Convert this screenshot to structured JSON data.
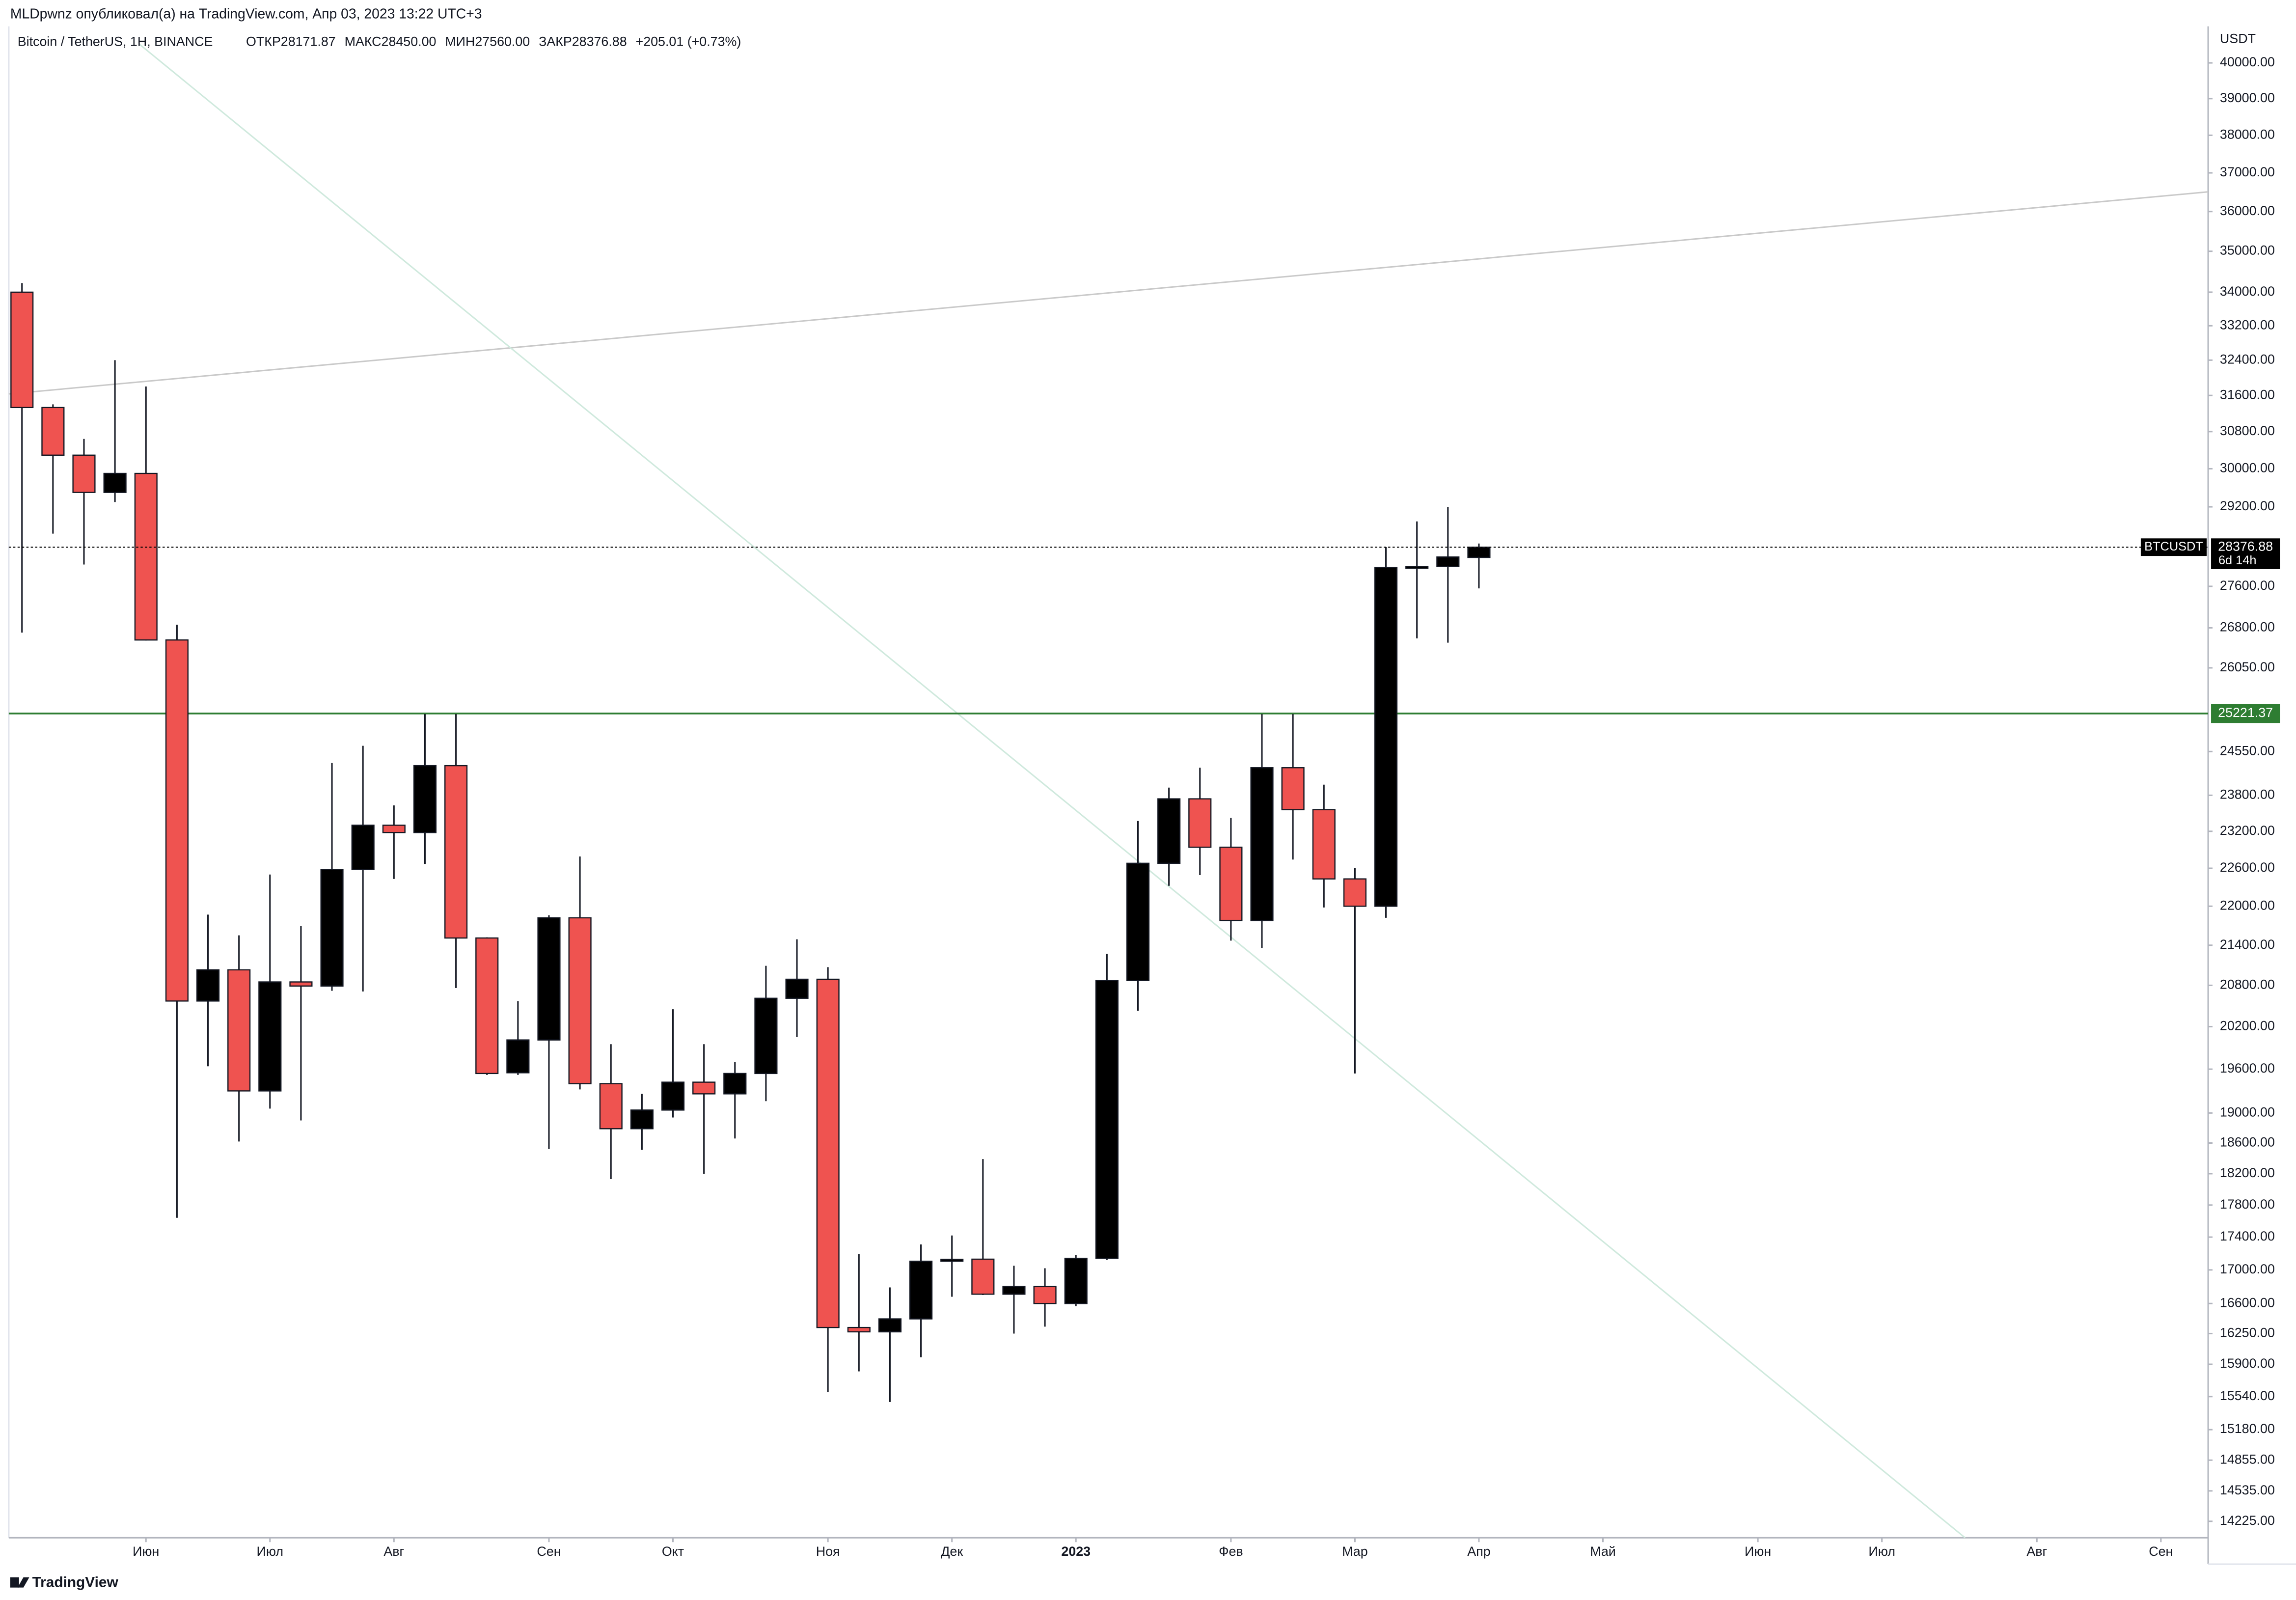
{
  "published": "MLDpwnz опубликовал(а) на TradingView.com, Апр 03, 2023 13:22 UTC+3",
  "footer": "TradingView",
  "chart_data": {
    "type": "candlestick",
    "title": "Bitcoin / TetherUS, 1H, BINANCE",
    "ohlc_legend": [
      "ОТКР28171.87",
      "МАКС28450.00",
      "МИН27560.00",
      "ЗАКР28376.88",
      "+205.01 (+0.73%)"
    ],
    "y_unit": "USDT",
    "log_scale": true,
    "up_color": "#000000",
    "down_color": "#ef5350",
    "categories": [
      null,
      null,
      null,
      null,
      "Июн",
      null,
      null,
      null,
      "Июл",
      null,
      null,
      null,
      "Авг",
      null,
      null,
      null,
      null,
      "Сен",
      null,
      null,
      null,
      "Окт",
      null,
      null,
      null,
      null,
      "Ноя",
      null,
      null,
      null,
      "Дек",
      null,
      null,
      null,
      "2023",
      null,
      null,
      null,
      null,
      "Фев",
      null,
      null,
      null,
      "Мар",
      null,
      null,
      null,
      "Апр",
      null,
      null,
      null,
      "Май",
      null,
      null,
      null,
      null,
      "Июн",
      null,
      null,
      null,
      "Июл",
      null,
      null,
      null,
      null,
      "Авг",
      null,
      null,
      null,
      "Сен",
      null
    ],
    "open": [
      34000,
      31330,
      30290,
      29500,
      29900,
      26570,
      20570,
      21030,
      19300,
      20850,
      20790,
      22580,
      23300,
      23180,
      24305,
      21510,
      19550,
      20010,
      21820,
      19400,
      18790,
      19040,
      19420,
      19260,
      19540,
      20610,
      20890,
      16320,
      16270,
      16420,
      17105,
      17130,
      16710,
      16800,
      16600,
      17140,
      20870,
      22680,
      23740,
      22940,
      21780,
      24270,
      23560,
      22430,
      22000,
      27970,
      27990,
      28171.87,
      null,
      null,
      null,
      null,
      null,
      null,
      null,
      null,
      null,
      null,
      null,
      null,
      null,
      null,
      null,
      null,
      null,
      null,
      null,
      null,
      null,
      null,
      null
    ],
    "high": [
      34220,
      31400,
      30640,
      32400,
      31800,
      26860,
      21870,
      21550,
      22500,
      21690,
      24350,
      24650,
      23630,
      25210,
      25210,
      21520,
      20570,
      21860,
      22790,
      19950,
      19260,
      20450,
      19950,
      19700,
      21090,
      21490,
      21070,
      17190,
      16790,
      17310,
      17420,
      18390,
      17050,
      17020,
      17180,
      21270,
      23370,
      23930,
      24270,
      23420,
      25210,
      25210,
      23980,
      22600,
      28380,
      28900,
      29200,
      28450,
      null,
      null,
      null,
      null,
      null,
      null,
      null,
      null,
      null,
      null,
      null,
      null,
      null,
      null,
      null,
      null,
      null,
      null,
      null,
      null,
      null,
      null,
      null
    ],
    "low": [
      26710,
      28650,
      28030,
      29300,
      26560,
      17640,
      19640,
      18620,
      19060,
      18900,
      20720,
      20710,
      22430,
      22670,
      20760,
      19520,
      19520,
      18520,
      19320,
      18130,
      18510,
      18940,
      18200,
      18660,
      19160,
      20050,
      15590,
      15820,
      15480,
      15980,
      16680,
      16700,
      16250,
      16330,
      16570,
      17120,
      20430,
      22320,
      22490,
      21470,
      21360,
      22740,
      21980,
      19540,
      21820,
      26600,
      26520,
      27560,
      null,
      null,
      null,
      null,
      null,
      null,
      null,
      null,
      null,
      null,
      null,
      null,
      null,
      null,
      null,
      null,
      null,
      null,
      null,
      null,
      null,
      null,
      null
    ],
    "close": [
      31330,
      30290,
      29500,
      29900,
      26570,
      20570,
      21030,
      19300,
      20850,
      20790,
      22580,
      23300,
      23180,
      24305,
      21510,
      19540,
      20010,
      21820,
      19400,
      18790,
      19040,
      19420,
      19260,
      19540,
      20610,
      20890,
      16320,
      16270,
      16420,
      17105,
      17128,
      16710,
      16800,
      16600,
      17140,
      20870,
      22680,
      23740,
      22940,
      21780,
      24270,
      23560,
      22430,
      22000,
      27970,
      27990,
      28180,
      28376.88,
      null,
      null,
      null,
      null,
      null,
      null,
      null,
      null,
      null,
      null,
      null,
      null,
      null,
      null,
      null,
      null,
      null,
      null,
      null,
      null,
      null,
      null,
      null
    ],
    "ylim": [
      14060,
      41050
    ],
    "yticks": [
      {
        "value": 40000,
        "label": "40000.00"
      },
      {
        "value": 39000,
        "label": "39000.00"
      },
      {
        "value": 38000,
        "label": "38000.00"
      },
      {
        "value": 37000,
        "label": "37000.00"
      },
      {
        "value": 36000,
        "label": "36000.00"
      },
      {
        "value": 35000,
        "label": "35000.00"
      },
      {
        "value": 34000,
        "label": "34000.00"
      },
      {
        "value": 33200,
        "label": "33200.00"
      },
      {
        "value": 32400,
        "label": "32400.00"
      },
      {
        "value": 31600,
        "label": "31600.00"
      },
      {
        "value": 30800,
        "label": "30800.00"
      },
      {
        "value": 30000,
        "label": "30000.00"
      },
      {
        "value": 29200,
        "label": "29200.00"
      },
      {
        "value": 27600,
        "label": "27600.00"
      },
      {
        "value": 26800,
        "label": "26800.00"
      },
      {
        "value": 26050,
        "label": "26050.00"
      },
      {
        "value": 24550,
        "label": "24550.00"
      },
      {
        "value": 23800,
        "label": "23800.00"
      },
      {
        "value": 23200,
        "label": "23200.00"
      },
      {
        "value": 22600,
        "label": "22600.00"
      },
      {
        "value": 22000,
        "label": "22000.00"
      },
      {
        "value": 21400,
        "label": "21400.00"
      },
      {
        "value": 20800,
        "label": "20800.00"
      },
      {
        "value": 20200,
        "label": "20200.00"
      },
      {
        "value": 19600,
        "label": "19600.00"
      },
      {
        "value": 19000,
        "label": "19000.00"
      },
      {
        "value": 18600,
        "label": "18600.00"
      },
      {
        "value": 18200,
        "label": "18200.00"
      },
      {
        "value": 17800,
        "label": "17800.00"
      },
      {
        "value": 17400,
        "label": "17400.00"
      },
      {
        "value": 17000,
        "label": "17000.00"
      },
      {
        "value": 16600,
        "label": "16600.00"
      },
      {
        "value": 16250,
        "label": "16250.00"
      },
      {
        "value": 15900,
        "label": "15900.00"
      },
      {
        "value": 15540,
        "label": "15540.00"
      },
      {
        "value": 15180,
        "label": "15180.00"
      },
      {
        "value": 14855,
        "label": "14855.00"
      },
      {
        "value": 14535,
        "label": "14535.00"
      },
      {
        "value": 14225,
        "label": "14225.00"
      }
    ],
    "price_line": {
      "value": 28376.88,
      "symbol": "BTCUSDT",
      "countdown": "6d 14h",
      "color": "#000000"
    },
    "level_line": {
      "value": 25221.37,
      "color": "#2e7d32"
    }
  }
}
